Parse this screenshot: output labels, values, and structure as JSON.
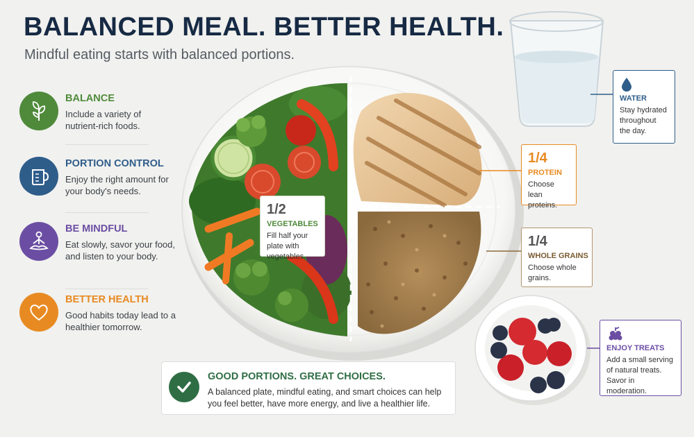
{
  "header": {
    "title": "BALANCED MEAL.  BETTER HEALTH.",
    "subtitle": "Mindful eating starts with balanced portions."
  },
  "pillars": [
    {
      "heading": "BALANCE",
      "text": "Include a variety of nutrient-rich foods.",
      "icon": "sprout-icon",
      "color": "#4f8a3a"
    },
    {
      "heading": "PORTION CONTROL",
      "text": "Enjoy the right amount for your body's needs.",
      "icon": "measuring-cup-icon",
      "color": "#2e5d8a"
    },
    {
      "heading": "BE MINDFUL",
      "text": "Eat slowly, savor your food, and listen to your body.",
      "icon": "meditation-icon",
      "color": "#6b4ea3"
    },
    {
      "heading": "BETTER HEALTH",
      "text": "Good habits today lead to a healthier tomorrow.",
      "icon": "heart-icon",
      "color": "#e88a22"
    }
  ],
  "plate": {
    "vegetables": {
      "fraction": "1/2",
      "label": "VEGETABLES",
      "text": "Fill half your plate with vegetables.",
      "color": "#4f8a3a"
    },
    "protein": {
      "fraction": "1/4",
      "label": "PROTEIN",
      "text": "Choose lean proteins.",
      "color": "#e88a22"
    },
    "grains": {
      "fraction": "1/4",
      "label": "WHOLE GRAINS",
      "text": "Choose whole grains.",
      "color": "#8a6a3c"
    }
  },
  "water": {
    "label": "WATER",
    "text": "Stay hydrated throughout the day.",
    "color": "#2e5d8a",
    "icon": "water-drop-icon"
  },
  "treats": {
    "label": "ENJOY TREATS",
    "text": "Add a small serving of natural treats. Savor in moderation.",
    "color": "#6b4ea3",
    "icon": "berries-icon"
  },
  "summary": {
    "heading": "GOOD PORTIONS.  GREAT CHOICES.",
    "text": "A balanced plate, mindful eating, and smart choices can help you feel better, have more energy, and live a healthier life.",
    "icon": "checkmark-icon"
  }
}
